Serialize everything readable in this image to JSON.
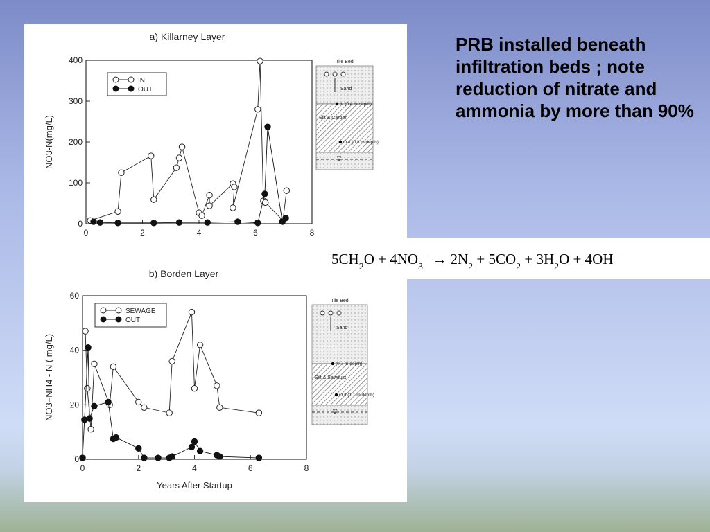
{
  "chart_data": [
    {
      "type": "line",
      "title": "a)  Killarney Layer",
      "y_label": "NO3-N(mg/L)",
      "xlim": [
        0,
        8
      ],
      "xticks": [
        0,
        2,
        4,
        6,
        8
      ],
      "ylim": [
        0,
        400
      ],
      "yticks": [
        0,
        100,
        200,
        300,
        400
      ],
      "series": [
        {
          "name": "IN",
          "marker": "open",
          "color": "#222",
          "x": [
            0.15,
            1.13,
            1.25,
            2.3,
            2.4,
            3.2,
            3.3,
            3.4,
            4.0,
            4.1,
            4.37,
            4.37,
            5.2,
            5.25,
            5.2,
            6.08,
            6.16,
            6.28,
            6.35,
            6.97,
            7.1
          ],
          "values": [
            8,
            30,
            125,
            166,
            59,
            137,
            161,
            188,
            27,
            20,
            70,
            44,
            98,
            90,
            39,
            280,
            398,
            56,
            52,
            8,
            81
          ]
        },
        {
          "name": "OUT",
          "marker": "filled",
          "color": "#111",
          "x": [
            0.27,
            0.5,
            1.13,
            2.4,
            3.3,
            4.3,
            5.37,
            6.08,
            6.33,
            6.43,
            6.95,
            7.07
          ],
          "values": [
            5,
            3,
            2,
            2,
            3,
            3,
            5,
            2,
            73,
            237,
            5,
            14
          ]
        }
      ]
    },
    {
      "type": "line",
      "title": "b)  Borden Layer",
      "y_label": "NO3+NH4 - N ( mg/L)",
      "x_label": "Years After Startup",
      "xlim": [
        0,
        8
      ],
      "xticks": [
        0,
        2,
        4,
        6,
        8
      ],
      "ylim": [
        0,
        60
      ],
      "yticks": [
        0,
        20,
        40,
        60
      ],
      "series": [
        {
          "name": "SEWAGE",
          "marker": "open",
          "color": "#222",
          "x": [
            0.1,
            0.17,
            0.3,
            0.42,
            0.97,
            1.1,
            2.0,
            2.2,
            3.1,
            3.2,
            3.9,
            4.0,
            4.2,
            4.8,
            4.9,
            6.3
          ],
          "values": [
            47,
            26,
            11,
            35,
            20,
            34,
            21,
            19,
            17,
            36,
            54,
            26,
            42,
            27,
            19,
            17
          ]
        },
        {
          "name": "OUT",
          "marker": "filled",
          "color": "#111",
          "x": [
            0,
            0.07,
            0.2,
            0.25,
            0.42,
            0.92,
            1.1,
            1.2,
            2.0,
            2.2,
            2.7,
            3.1,
            3.2,
            3.9,
            4.0,
            4.2,
            4.8,
            4.9,
            6.3
          ],
          "values": [
            0.5,
            14.5,
            41,
            15,
            19.5,
            21,
            7.5,
            8,
            4,
            0.5,
            0.5,
            0.5,
            1,
            4.5,
            6.5,
            3,
            1.5,
            1,
            0.5
          ]
        }
      ]
    }
  ],
  "schematics": [
    {
      "top": "Tile Bed",
      "layer1": "Sand",
      "port1": "In (0.4 m depth)",
      "layer2": "Silt & Carbon",
      "port2": "Out (0.8 m depth)",
      "water": "∇"
    },
    {
      "top": "Tile Bed",
      "layer1": "Sand",
      "port1": "(0.7 m depth)",
      "layer2": "Silt & Sawdust",
      "port2": "Out (1.1 m depth)",
      "water": "∇"
    }
  ],
  "slide": {
    "text": "PRB installed beneath infiltration beds ; note reduction of nitrate and ammonia by more than 90%",
    "equation": [
      {
        "t": "5CH"
      },
      {
        "sub": "2"
      },
      {
        "t": "O + 4NO"
      },
      {
        "sub": "3"
      },
      {
        "sup": "−"
      },
      {
        "t": " → 2N"
      },
      {
        "sub": "2"
      },
      {
        "t": " + 5CO"
      },
      {
        "sub": "2"
      },
      {
        "t": " + 3H"
      },
      {
        "sub": "2"
      },
      {
        "t": "O + 4OH"
      },
      {
        "sup": "−"
      }
    ]
  }
}
